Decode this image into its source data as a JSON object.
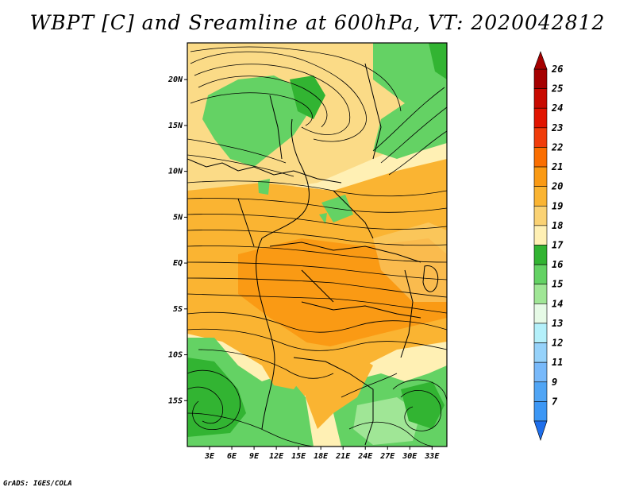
{
  "title": "WBPT [C] and Sreamline at 600hPa, VT: 2020042812",
  "credit": "GrADS: IGES/COLA",
  "map": {
    "lon_range": [
      0,
      35
    ],
    "lat_range": [
      -20,
      24
    ],
    "lat_ticks": [
      {
        "value": 20,
        "label": "20N"
      },
      {
        "value": 15,
        "label": "15N"
      },
      {
        "value": 10,
        "label": "10N"
      },
      {
        "value": 5,
        "label": "5N"
      },
      {
        "value": 0,
        "label": "EQ"
      },
      {
        "value": -5,
        "label": "5S"
      },
      {
        "value": -10,
        "label": "10S"
      },
      {
        "value": -15,
        "label": "15S"
      }
    ],
    "lon_ticks": [
      {
        "value": 3,
        "label": "3E"
      },
      {
        "value": 6,
        "label": "6E"
      },
      {
        "value": 9,
        "label": "9E"
      },
      {
        "value": 12,
        "label": "12E"
      },
      {
        "value": 15,
        "label": "15E"
      },
      {
        "value": 18,
        "label": "18E"
      },
      {
        "value": 21,
        "label": "21E"
      },
      {
        "value": 24,
        "label": "24E"
      },
      {
        "value": 27,
        "label": "27E"
      },
      {
        "value": 30,
        "label": "30E"
      },
      {
        "value": 33,
        "label": "33E"
      }
    ]
  },
  "colorbar": {
    "levels": [
      {
        "label": "26",
        "color": "#a50000"
      },
      {
        "label": "25",
        "color": "#c80a00"
      },
      {
        "label": "24",
        "color": "#e11400"
      },
      {
        "label": "23",
        "color": "#f03c0a"
      },
      {
        "label": "22",
        "color": "#fa6e00"
      },
      {
        "label": "21",
        "color": "#fa9a14"
      },
      {
        "label": "20",
        "color": "#fab432"
      },
      {
        "label": "19",
        "color": "#fad274"
      },
      {
        "label": "18",
        "color": "#fff0b4"
      },
      {
        "label": "17",
        "color": "#32b432"
      },
      {
        "label": "16",
        "color": "#64d264"
      },
      {
        "label": "15",
        "color": "#a0e696"
      },
      {
        "label": "14",
        "color": "#e6fae6"
      },
      {
        "label": "13",
        "color": "#b4f0fa"
      },
      {
        "label": "12",
        "color": "#96d2fa"
      },
      {
        "label": "11",
        "color": "#78b9fa"
      },
      {
        "label": "9",
        "color": "#50a5f5"
      },
      {
        "label": "7",
        "color": "#3c97f5"
      }
    ],
    "top_cap_color": "#a50000",
    "bottom_cap_color": "#1e6eeb"
  },
  "field_colors": {
    "green_dark": "#32b432",
    "green_mid": "#64d264",
    "green_light": "#a0e696",
    "cream": "#fff0b4",
    "yellow": "#fad274",
    "orange_light": "#fab432",
    "orange": "#fa9a14",
    "border": "#000000"
  }
}
